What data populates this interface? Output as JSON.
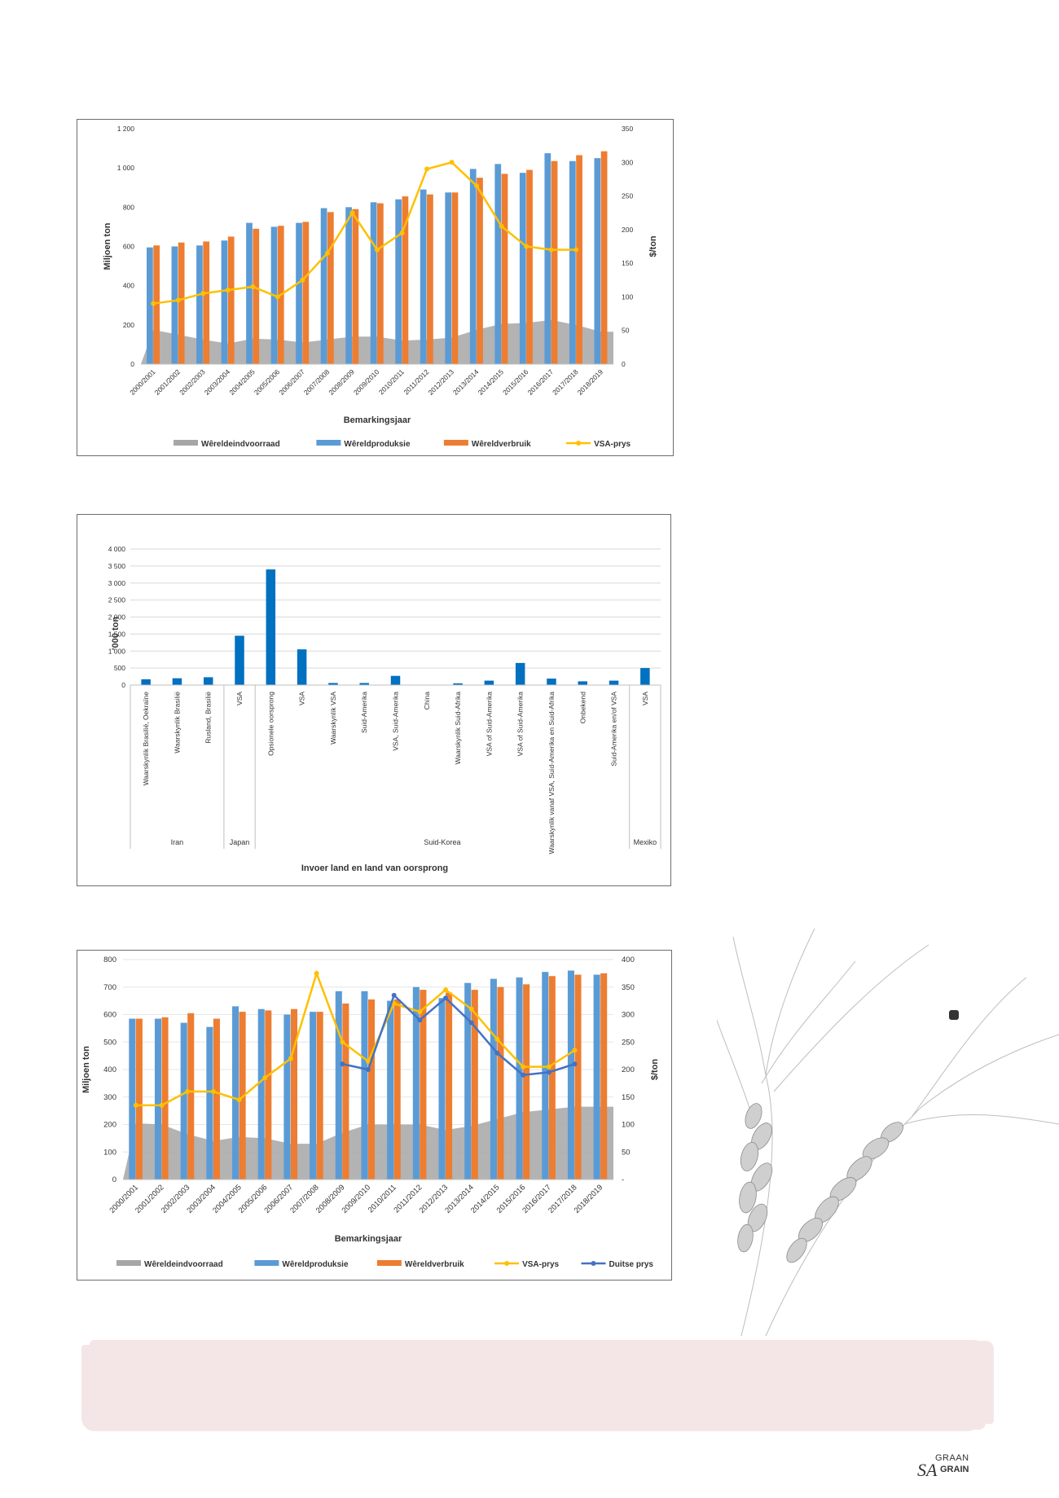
{
  "chart_data": [
    {
      "type": "bar",
      "ylabel": "Miljoen ton",
      "y2label": "$/ton",
      "xlabel": "Bemarkingsjaar",
      "ylim": [
        0,
        1200
      ],
      "y2lim": [
        0,
        350
      ],
      "yticks": [
        "0",
        "200",
        "400",
        "600",
        "800",
        "1 000",
        "1 200"
      ],
      "y2ticks": [
        "0",
        "50",
        "100",
        "150",
        "200",
        "250",
        "300",
        "350"
      ],
      "categories": [
        "2000/2001",
        "2001/2002",
        "2002/2003",
        "2003/2004",
        "2004/2005",
        "2005/2006",
        "2006/2007",
        "2007/2008",
        "2008/2009",
        "2009/2010",
        "2010/2011",
        "2011/2012",
        "2012/2013",
        "2013/2014",
        "2014/2015",
        "2015/2016",
        "2016/2017",
        "2017/2018",
        "2018/2019"
      ],
      "series": [
        {
          "name": "Wêreldeindvoorraad",
          "kind": "area",
          "color": "#a6a6a6",
          "values": [
            175,
            150,
            125,
            105,
            130,
            125,
            110,
            125,
            140,
            140,
            120,
            125,
            135,
            175,
            205,
            210,
            225,
            200,
            165
          ]
        },
        {
          "name": "Wêreldproduksie",
          "kind": "bar",
          "color": "#5b9bd5",
          "values": [
            595,
            600,
            605,
            630,
            720,
            700,
            720,
            795,
            800,
            825,
            840,
            890,
            875,
            995,
            1020,
            975,
            1075,
            1035,
            1050
          ]
        },
        {
          "name": "Wêreldverbruik",
          "kind": "bar",
          "color": "#ed7d31",
          "values": [
            605,
            620,
            625,
            650,
            690,
            705,
            725,
            775,
            790,
            820,
            855,
            865,
            875,
            950,
            970,
            990,
            1035,
            1065,
            1085
          ]
        },
        {
          "name": "VSA-prys",
          "kind": "line",
          "axis": "y2",
          "color": "#ffc000",
          "values": [
            90,
            95,
            105,
            110,
            115,
            100,
            125,
            165,
            225,
            170,
            195,
            290,
            300,
            265,
            205,
            175,
            170,
            170,
            null
          ]
        }
      ],
      "legend_position": "bottom"
    },
    {
      "type": "bar",
      "ylabel": "'000 ton",
      "xlabel": "Invoer land en land van oorsprong",
      "ylim": [
        0,
        4000
      ],
      "yticks": [
        "0",
        "500",
        "1 000",
        "1 500",
        "2 000",
        "2 500",
        "3 000",
        "3 500",
        "4 000"
      ],
      "categories": [
        "Waarskynlik Brasilië, Oekraïne",
        "Waarskynlik Brasilië",
        "Rusland, Brasilië",
        "VSA",
        "Opsionele oorsprong",
        "VSA",
        "Waarskynlik VSA",
        "Suid-Amerika",
        "VSA, Suid-Amerika",
        "China",
        "Waarskynlik Suid-Afrika",
        "VSA of Suid-Amerika",
        "VSA of Suid-Amerika",
        "Waarskynlik vanaf VSA, Suid-Amerika en Suid-Afrika",
        "Onbekend",
        "Suid-Amerika en/of VSA",
        "VSA"
      ],
      "values": [
        170,
        200,
        230,
        1450,
        3400,
        1050,
        60,
        60,
        270,
        0,
        50,
        130,
        650,
        190,
        110,
        130,
        500
      ],
      "color": "#0070c0",
      "groups": [
        {
          "name": "Iran",
          "start": 0,
          "end": 2
        },
        {
          "name": "Japan",
          "start": 3,
          "end": 3
        },
        {
          "name": "Suid-Korea",
          "start": 4,
          "end": 15
        },
        {
          "name": "Mexiko",
          "start": 16,
          "end": 16
        }
      ]
    },
    {
      "type": "bar",
      "ylabel": "Miljoen ton",
      "y2label": "$/ton",
      "xlabel": "Bemarkingsjaar",
      "ylim": [
        0,
        800
      ],
      "y2lim": [
        0,
        400
      ],
      "yticks": [
        "0",
        "100",
        "200",
        "300",
        "400",
        "500",
        "600",
        "700",
        "800"
      ],
      "y2ticks": [
        "-",
        "50",
        "100",
        "150",
        "200",
        "250",
        "300",
        "350",
        "400"
      ],
      "categories": [
        "2000/2001",
        "2001/2002",
        "2002/2003",
        "2003/2004",
        "2004/2005",
        "2005/2006",
        "2006/2007",
        "2007/2008",
        "2008/2009",
        "2009/2010",
        "2010/2011",
        "2011/2012",
        "2012/2013",
        "2013/2014",
        "2014/2015",
        "2015/2016",
        "2016/2017",
        "2017/2018",
        "2018/2019"
      ],
      "series": [
        {
          "name": "Wêreldeindvoorraad",
          "kind": "area",
          "color": "#a6a6a6",
          "values": [
            205,
            200,
            165,
            140,
            155,
            150,
            130,
            130,
            170,
            200,
            200,
            200,
            180,
            195,
            220,
            245,
            255,
            265,
            265
          ]
        },
        {
          "name": "Wêreldproduksie",
          "kind": "bar",
          "color": "#5b9bd5",
          "values": [
            585,
            585,
            570,
            555,
            630,
            620,
            600,
            610,
            685,
            685,
            650,
            700,
            660,
            715,
            730,
            735,
            755,
            760,
            745
          ]
        },
        {
          "name": "Wêreldverbruik",
          "kind": "bar",
          "color": "#ed7d31",
          "values": [
            585,
            590,
            605,
            585,
            610,
            615,
            620,
            610,
            640,
            655,
            655,
            690,
            680,
            690,
            700,
            710,
            740,
            745,
            750
          ]
        },
        {
          "name": "VSA-prys",
          "kind": "line",
          "axis": "y2",
          "color": "#ffc000",
          "values": [
            135,
            135,
            160,
            160,
            145,
            185,
            220,
            375,
            250,
            215,
            320,
            305,
            345,
            310,
            255,
            205,
            205,
            235,
            null
          ]
        },
        {
          "name": "Duitse prys",
          "kind": "line",
          "axis": "y2",
          "color": "#4472c4",
          "values": [
            null,
            null,
            null,
            null,
            null,
            null,
            null,
            null,
            210,
            200,
            335,
            290,
            330,
            285,
            230,
            190,
            195,
            210,
            null
          ]
        }
      ],
      "legend_position": "bottom"
    }
  ]
}
